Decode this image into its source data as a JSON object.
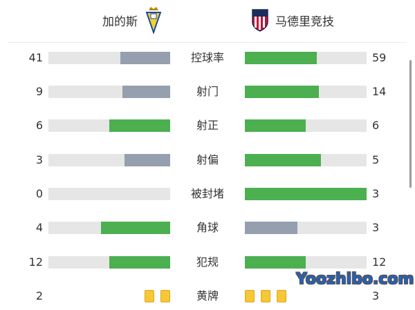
{
  "header": {
    "home_team": "加的斯",
    "away_team": "马德里竞技",
    "home_logo": "cadiz-crest-icon",
    "away_logo": "atletico-madrid-crest-icon"
  },
  "colors": {
    "leader": "#4caf50",
    "trailer": "#959fae",
    "track": "#e6e6e6",
    "card": "#f7c736"
  },
  "stats": [
    {
      "label": "控球率",
      "home": "41",
      "away": "59",
      "home_share": 0.41,
      "away_share": 0.59,
      "home_color": "#959fae",
      "away_color": "#4caf50"
    },
    {
      "label": "射门",
      "home": "9",
      "away": "14",
      "home_share": 0.39,
      "away_share": 0.61,
      "home_color": "#959fae",
      "away_color": "#4caf50"
    },
    {
      "label": "射正",
      "home": "6",
      "away": "6",
      "home_share": 0.5,
      "away_share": 0.5,
      "home_color": "#4caf50",
      "away_color": "#4caf50"
    },
    {
      "label": "射偏",
      "home": "3",
      "away": "5",
      "home_share": 0.375,
      "away_share": 0.625,
      "home_color": "#959fae",
      "away_color": "#4caf50"
    },
    {
      "label": "被封堵",
      "home": "0",
      "away": "3",
      "home_share": 0,
      "away_share": 1,
      "home_color": "#959fae",
      "away_color": "#4caf50"
    },
    {
      "label": "角球",
      "home": "4",
      "away": "3",
      "home_share": 0.57,
      "away_share": 0.43,
      "home_color": "#4caf50",
      "away_color": "#959fae"
    },
    {
      "label": "犯规",
      "home": "12",
      "away": "12",
      "home_share": 0.5,
      "away_share": 0.5,
      "home_color": "#4caf50",
      "away_color": "#4caf50"
    }
  ],
  "yellow_cards": {
    "label": "黄牌",
    "home": "2",
    "away": "3",
    "home_count": 2,
    "away_count": 3
  },
  "watermark": "Yoozhibo.com"
}
